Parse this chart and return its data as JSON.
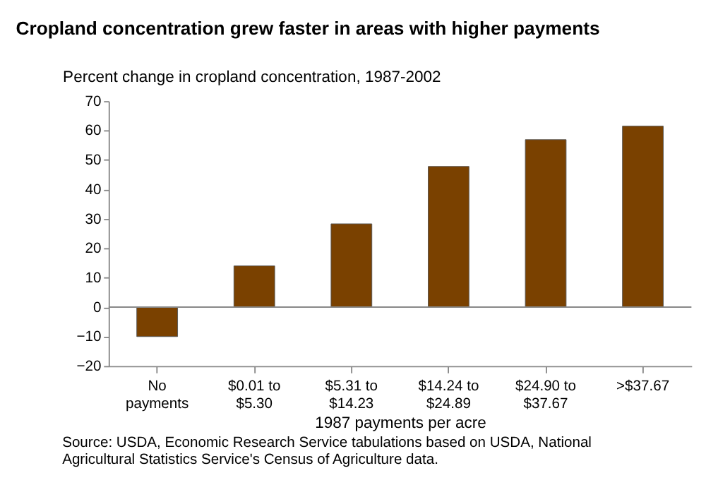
{
  "chart_data": {
    "type": "bar",
    "title": "Cropland concentration grew faster in areas with higher payments",
    "ylabel": "Percent change in cropland concentration, 1987-2002",
    "xlabel": "1987 payments per acre",
    "categories": [
      "No\npayments",
      "$0.01 to\n$5.30",
      "$5.31 to\n$14.23",
      "$14.24 to\n$24.89",
      "$24.90 to\n$37.67",
      ">$37.67"
    ],
    "values": [
      -10,
      14,
      28.3,
      47.8,
      56.9,
      61.5
    ],
    "color": "#7a4100",
    "ylim": [
      -20,
      70
    ],
    "yticks": [
      -20,
      -10,
      0,
      10,
      20,
      30,
      40,
      50,
      60,
      70
    ],
    "grid": false,
    "ref_lines": [
      {
        "axis": "y",
        "value": 0,
        "color": "#888888"
      }
    ],
    "annotations": [
      "Source:  USDA, Economic Research Service tabulations based on USDA, National Agricultural Statistics Service's Census of Agriculture data."
    ]
  }
}
